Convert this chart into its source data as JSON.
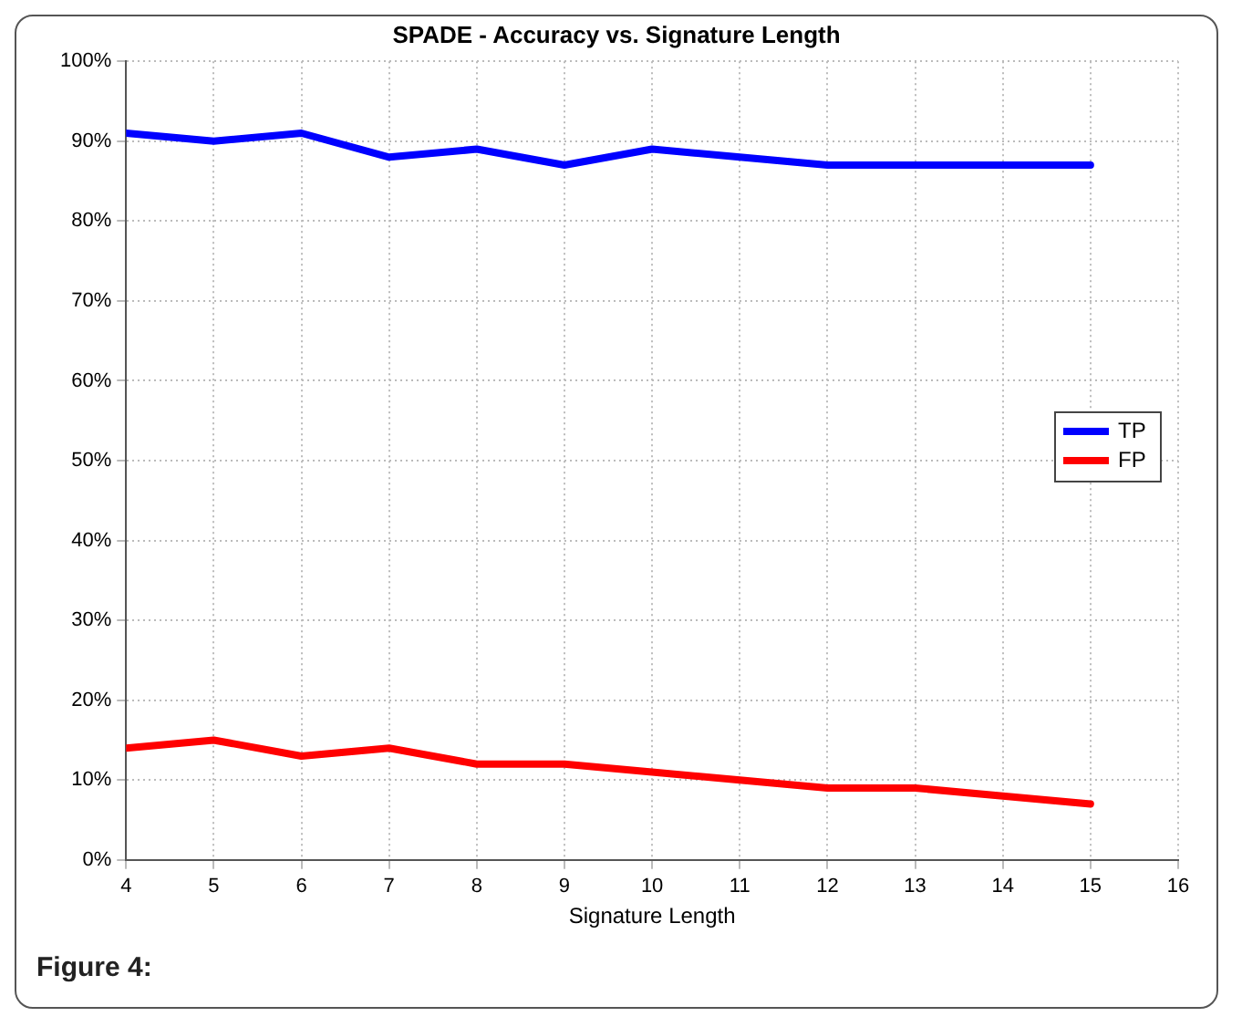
{
  "chart_data": {
    "type": "line",
    "title": "SPADE - Accuracy vs. Signature Length",
    "xlabel": "Signature Length",
    "x": [
      4,
      5,
      6,
      7,
      8,
      9,
      10,
      11,
      12,
      13,
      14,
      15
    ],
    "series": [
      {
        "name": "TP",
        "color": "#0000ff",
        "values": [
          91,
          90,
          91,
          88,
          89,
          87,
          89,
          88,
          87,
          87,
          87,
          87
        ]
      },
      {
        "name": "FP",
        "color": "#ff0000",
        "values": [
          14,
          15,
          13,
          14,
          12,
          12,
          11,
          10,
          9,
          9,
          8,
          7
        ]
      }
    ],
    "xlim": [
      4,
      16
    ],
    "xticks": [
      4,
      5,
      6,
      7,
      8,
      9,
      10,
      11,
      12,
      13,
      14,
      15,
      16
    ],
    "ylim": [
      0,
      100
    ],
    "yticks": [
      {
        "value": 0,
        "label": "0%"
      },
      {
        "value": 10,
        "label": "10%"
      },
      {
        "value": 20,
        "label": "20%"
      },
      {
        "value": 30,
        "label": "30%"
      },
      {
        "value": 40,
        "label": "40%"
      },
      {
        "value": 50,
        "label": "50%"
      },
      {
        "value": 60,
        "label": "60%"
      },
      {
        "value": 70,
        "label": "70%"
      },
      {
        "value": 80,
        "label": "80%"
      },
      {
        "value": 90,
        "label": "90%"
      },
      {
        "value": 100,
        "label": "100%"
      }
    ],
    "grid": true,
    "legend": "right",
    "marker": "none",
    "line_style": "solid",
    "annotations": [
      "Figure 4:"
    ]
  }
}
